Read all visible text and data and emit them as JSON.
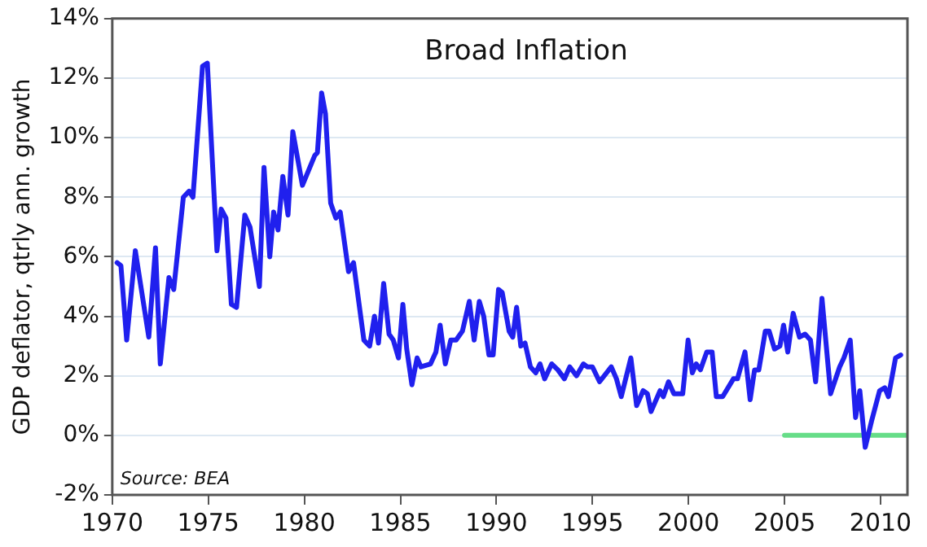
{
  "chart_data": {
    "type": "line",
    "title": "Broad Inflation",
    "ylabel": "GDP deflator, qtrly ann. growth",
    "annotations": [
      "Source: BEA"
    ],
    "xlim": [
      1970,
      2011.4
    ],
    "xticks": [
      1970,
      1975,
      1980,
      1985,
      1990,
      1995,
      2000,
      2005,
      2010
    ],
    "ylim": [
      -2,
      14
    ],
    "yticks": [
      {
        "value": -2,
        "label": "-2%"
      },
      {
        "value": 0,
        "label": "0%"
      },
      {
        "value": 2,
        "label": "2%"
      },
      {
        "value": 4,
        "label": "4%"
      },
      {
        "value": 6,
        "label": "6%"
      },
      {
        "value": 8,
        "label": "8%"
      },
      {
        "value": 10,
        "label": "10%"
      },
      {
        "value": 12,
        "label": "12%"
      },
      {
        "value": 14,
        "label": "14%"
      }
    ],
    "grid": "y",
    "legend": false,
    "marker": "none",
    "line_style": "solid",
    "series": [
      {
        "color": "#2020ee",
        "x": [
          1970.25,
          1970.45,
          1970.75,
          1971.2,
          1971.9,
          1972.25,
          1972.5,
          1972.95,
          1973.2,
          1973.7,
          1974,
          1974.2,
          1974.7,
          1974.95,
          1975.45,
          1975.67,
          1975.92,
          1976.2,
          1976.47,
          1976.9,
          1977.17,
          1977.66,
          1977.9,
          1978.2,
          1978.4,
          1978.63,
          1978.88,
          1979.15,
          1979.4,
          1979.9,
          1980.54,
          1980.68,
          1980.9,
          1981.1,
          1981.37,
          1981.64,
          1981.87,
          1982.3,
          1982.56,
          1983.1,
          1983.4,
          1983.65,
          1983.86,
          1984.13,
          1984.41,
          1984.63,
          1984.9,
          1985.13,
          1985.33,
          1985.6,
          1985.87,
          1986.07,
          1986.57,
          1986.85,
          1987.07,
          1987.34,
          1987.62,
          1987.9,
          1988.23,
          1988.59,
          1988.84,
          1989.11,
          1989.34,
          1989.61,
          1989.83,
          1990.11,
          1990.3,
          1990.66,
          1990.85,
          1991.05,
          1991.27,
          1991.49,
          1991.77,
          1992.05,
          1992.27,
          1992.51,
          1992.88,
          1993.2,
          1993.54,
          1993.82,
          1994.17,
          1994.53,
          1994.73,
          1995,
          1995.37,
          1995.98,
          1996.25,
          1996.5,
          1997,
          1997.3,
          1997.64,
          1997.86,
          1998.05,
          1998.52,
          1998.69,
          1998.96,
          1999.24,
          1999.7,
          1999.98,
          2000.2,
          2000.4,
          2000.62,
          2000.95,
          2001.23,
          2001.45,
          2001.78,
          2002.34,
          2002.55,
          2002.94,
          2003.21,
          2003.44,
          2003.66,
          2004,
          2004.2,
          2004.48,
          2004.76,
          2004.95,
          2005.17,
          2005.45,
          2005.78,
          2006.07,
          2006.35,
          2006.62,
          2006.95,
          2007.4,
          2007.87,
          2008.09,
          2008.42,
          2008.7,
          2008.92,
          2009.2,
          2009.54,
          2009.95,
          2010.22,
          2010.41,
          2010.78,
          2011.05
        ],
        "values": [
          5.8,
          5.7,
          3.2,
          6.2,
          3.3,
          6.3,
          2.4,
          5.3,
          4.9,
          8,
          8.2,
          8,
          12.4,
          12.5,
          6.2,
          7.6,
          7.3,
          4.4,
          4.3,
          7.4,
          7,
          5,
          9,
          6,
          7.5,
          6.9,
          8.7,
          7.4,
          10.2,
          8.4,
          9.4,
          9.5,
          11.5,
          10.8,
          7.8,
          7.3,
          7.5,
          5.5,
          5.8,
          3.2,
          3,
          4,
          3.1,
          5.1,
          3.4,
          3.2,
          2.6,
          4.4,
          2.9,
          1.7,
          2.6,
          2.3,
          2.4,
          2.8,
          3.7,
          2.4,
          3.2,
          3.2,
          3.5,
          4.5,
          3.2,
          4.5,
          4,
          2.7,
          2.7,
          4.9,
          4.8,
          3.5,
          3.3,
          4.3,
          3,
          3.1,
          2.3,
          2.1,
          2.4,
          1.9,
          2.4,
          2.2,
          1.9,
          2.3,
          2,
          2.4,
          2.3,
          2.3,
          1.8,
          2.3,
          1.9,
          1.3,
          2.6,
          1,
          1.5,
          1.4,
          0.8,
          1.5,
          1.3,
          1.8,
          1.4,
          1.4,
          3.2,
          2.1,
          2.4,
          2.2,
          2.8,
          2.8,
          1.3,
          1.3,
          1.9,
          1.9,
          2.8,
          1.2,
          2.2,
          2.2,
          3.5,
          3.5,
          2.9,
          3,
          3.7,
          2.8,
          4.1,
          3.3,
          3.4,
          3.2,
          1.8,
          4.6,
          1.4,
          2.3,
          2.6,
          3.2,
          0.6,
          1.5,
          -0.4,
          0.5,
          1.5,
          1.6,
          1.3,
          2.6,
          2.7
        ]
      },
      {
        "color": "#66dd88",
        "x": [
          2005,
          2011.4
        ],
        "values": [
          0,
          0
        ]
      }
    ]
  }
}
